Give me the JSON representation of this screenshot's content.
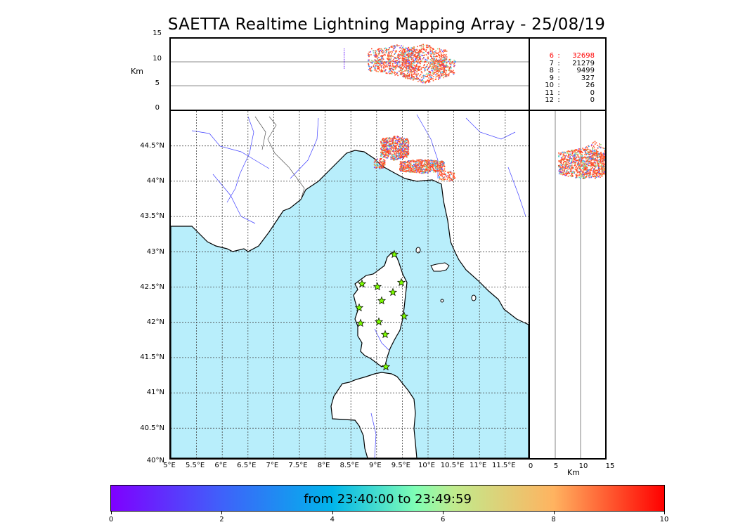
{
  "title": "SAETTA Realtime Lightning Mapping Array - 25/08/19",
  "altitude_axis": {
    "label": "Km",
    "ticks": [
      "15",
      "10",
      "5",
      "0"
    ]
  },
  "side_axis": {
    "label": "Km",
    "ticks": [
      "0",
      "5",
      "10",
      "15"
    ]
  },
  "longitude_ticks": [
    "5°E",
    "5.5°E",
    "6°E",
    "6.5°E",
    "7°E",
    "7.5°E",
    "8°E",
    "8.5°E",
    "9°E",
    "9.5°E",
    "10°E",
    "10.5°E",
    "11°E",
    "11.5°E"
  ],
  "latitude_ticks": [
    "44.5°N",
    "44°N",
    "43.5°N",
    "43°N",
    "42.5°N",
    "42°N",
    "41.5°N",
    "41°N",
    "40.5°N",
    "40°N"
  ],
  "station_stats": [
    {
      "level": "6",
      "sep": ":",
      "count": "32698",
      "highlight": true
    },
    {
      "level": "7",
      "sep": ":",
      "count": "21279",
      "highlight": false
    },
    {
      "level": "8",
      "sep": ":",
      "count": "9499",
      "highlight": false
    },
    {
      "level": "9",
      "sep": ":",
      "count": "327",
      "highlight": false
    },
    {
      "level": "10",
      "sep": ":",
      "count": "26",
      "highlight": false
    },
    {
      "level": "11",
      "sep": ":",
      "count": "0",
      "highlight": false
    },
    {
      "level": "12",
      "sep": ":",
      "count": "0",
      "highlight": false
    }
  ],
  "colorbar": {
    "label": "from 23:40:00 to 23:49:59",
    "ticks": [
      "0",
      "2",
      "4",
      "6",
      "8",
      "10"
    ]
  },
  "colors": {
    "sea": "#b8eefb",
    "highlight": "#ff0000",
    "station_fill": "#7cfc00"
  }
}
